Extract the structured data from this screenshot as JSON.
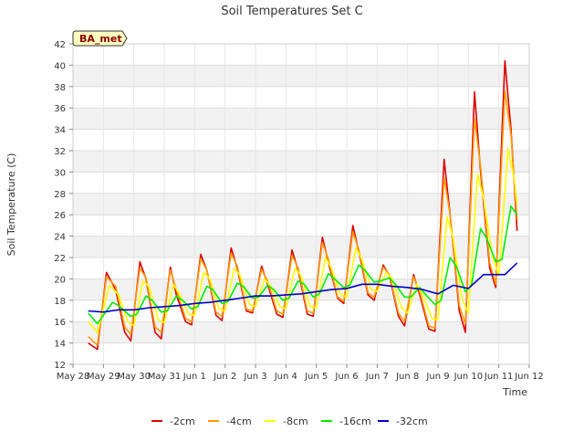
{
  "chart_data": {
    "type": "line",
    "title": "Soil Temperatures Set C",
    "xlabel": "Time",
    "ylabel": "Soil Temperature (C)",
    "badge": "BA_met",
    "ylim": [
      12,
      42
    ],
    "yticks": [
      12,
      14,
      16,
      18,
      20,
      22,
      24,
      26,
      28,
      30,
      32,
      34,
      36,
      38,
      40,
      42
    ],
    "xlim": [
      0,
      15
    ],
    "xticks": [
      {
        "pos": 0,
        "label": "May 28"
      },
      {
        "pos": 1,
        "label": "May 29"
      },
      {
        "pos": 2,
        "label": "May 30"
      },
      {
        "pos": 3,
        "label": "May 31"
      },
      {
        "pos": 4,
        "label": "Jun 1"
      },
      {
        "pos": 5,
        "label": "Jun 2"
      },
      {
        "pos": 6,
        "label": "Jun 3"
      },
      {
        "pos": 7,
        "label": "Jun 4"
      },
      {
        "pos": 8,
        "label": "Jun 5"
      },
      {
        "pos": 9,
        "label": "Jun 6"
      },
      {
        "pos": 10,
        "label": "Jun 7"
      },
      {
        "pos": 11,
        "label": "Jun 8"
      },
      {
        "pos": 12,
        "label": "Jun 9"
      },
      {
        "pos": 13,
        "label": "Jun 10"
      },
      {
        "pos": 14,
        "label": "Jun 11"
      },
      {
        "pos": 15,
        "label": "Jun 12"
      }
    ],
    "grid": true,
    "legend_position": "bottom",
    "series": [
      {
        "name": "-2cm",
        "color": "#dd0000",
        "points": [
          [
            0.5,
            14.0
          ],
          [
            0.8,
            13.4
          ],
          [
            1.1,
            20.6
          ],
          [
            1.4,
            19.0
          ],
          [
            1.7,
            15.0
          ],
          [
            1.9,
            14.2
          ],
          [
            2.2,
            21.6
          ],
          [
            2.4,
            20.0
          ],
          [
            2.7,
            15.0
          ],
          [
            2.9,
            14.4
          ],
          [
            3.2,
            21.1
          ],
          [
            3.4,
            18.5
          ],
          [
            3.7,
            16.0
          ],
          [
            3.9,
            15.7
          ],
          [
            4.2,
            22.3
          ],
          [
            4.4,
            20.8
          ],
          [
            4.7,
            16.6
          ],
          [
            4.9,
            16.1
          ],
          [
            5.2,
            22.9
          ],
          [
            5.4,
            21.0
          ],
          [
            5.7,
            17.0
          ],
          [
            5.9,
            16.8
          ],
          [
            6.2,
            21.2
          ],
          [
            6.4,
            19.5
          ],
          [
            6.7,
            16.7
          ],
          [
            6.9,
            16.4
          ],
          [
            7.2,
            22.7
          ],
          [
            7.4,
            20.8
          ],
          [
            7.7,
            16.7
          ],
          [
            7.9,
            16.5
          ],
          [
            8.2,
            23.9
          ],
          [
            8.4,
            21.5
          ],
          [
            8.7,
            18.2
          ],
          [
            8.9,
            17.7
          ],
          [
            9.2,
            25.0
          ],
          [
            9.4,
            22.5
          ],
          [
            9.7,
            18.5
          ],
          [
            9.9,
            18.0
          ],
          [
            10.2,
            21.3
          ],
          [
            10.4,
            20.3
          ],
          [
            10.7,
            16.5
          ],
          [
            10.9,
            15.6
          ],
          [
            11.2,
            20.4
          ],
          [
            11.4,
            18.5
          ],
          [
            11.7,
            15.3
          ],
          [
            11.9,
            15.1
          ],
          [
            12.2,
            31.2
          ],
          [
            12.4,
            26.0
          ],
          [
            12.7,
            17.0
          ],
          [
            12.9,
            15.0
          ],
          [
            13.2,
            37.5
          ],
          [
            13.4,
            30.0
          ],
          [
            13.7,
            21.0
          ],
          [
            13.9,
            19.2
          ],
          [
            14.2,
            40.4
          ],
          [
            14.4,
            34.0
          ],
          [
            14.6,
            24.5
          ]
        ]
      },
      {
        "name": "-4cm",
        "color": "#ff9900",
        "points": [
          [
            0.5,
            14.6
          ],
          [
            0.8,
            13.8
          ],
          [
            1.1,
            20.2
          ],
          [
            1.4,
            19.3
          ],
          [
            1.7,
            15.5
          ],
          [
            1.9,
            14.8
          ],
          [
            2.2,
            21.0
          ],
          [
            2.4,
            20.1
          ],
          [
            2.7,
            15.5
          ],
          [
            2.9,
            15.0
          ],
          [
            3.2,
            20.8
          ],
          [
            3.4,
            19.0
          ],
          [
            3.7,
            16.3
          ],
          [
            3.9,
            16.0
          ],
          [
            4.2,
            21.9
          ],
          [
            4.4,
            20.8
          ],
          [
            4.7,
            16.9
          ],
          [
            4.9,
            16.5
          ],
          [
            5.2,
            22.4
          ],
          [
            5.4,
            21.2
          ],
          [
            5.7,
            17.2
          ],
          [
            5.9,
            17.0
          ],
          [
            6.2,
            20.9
          ],
          [
            6.4,
            19.8
          ],
          [
            6.7,
            17.0
          ],
          [
            6.9,
            16.7
          ],
          [
            7.2,
            22.2
          ],
          [
            7.4,
            21.0
          ],
          [
            7.7,
            17.0
          ],
          [
            7.9,
            16.8
          ],
          [
            8.2,
            23.4
          ],
          [
            8.4,
            21.8
          ],
          [
            8.7,
            18.3
          ],
          [
            8.9,
            17.9
          ],
          [
            9.2,
            24.4
          ],
          [
            9.4,
            22.7
          ],
          [
            9.7,
            18.7
          ],
          [
            9.9,
            18.3
          ],
          [
            10.2,
            21.1
          ],
          [
            10.4,
            20.4
          ],
          [
            10.7,
            16.8
          ],
          [
            10.9,
            16.0
          ],
          [
            11.2,
            20.2
          ],
          [
            11.4,
            18.8
          ],
          [
            11.7,
            15.6
          ],
          [
            11.9,
            15.4
          ],
          [
            12.2,
            29.5
          ],
          [
            12.4,
            26.0
          ],
          [
            12.7,
            17.5
          ],
          [
            12.9,
            15.8
          ],
          [
            13.2,
            35.0
          ],
          [
            13.4,
            30.5
          ],
          [
            13.7,
            21.5
          ],
          [
            13.9,
            19.5
          ],
          [
            14.2,
            37.6
          ],
          [
            14.4,
            33.5
          ],
          [
            14.6,
            25.5
          ]
        ]
      },
      {
        "name": "-8cm",
        "color": "#ffff00",
        "points": [
          [
            0.5,
            16.0
          ],
          [
            0.8,
            15.0
          ],
          [
            1.2,
            19.4
          ],
          [
            1.5,
            18.5
          ],
          [
            1.8,
            16.0
          ],
          [
            2.0,
            15.6
          ],
          [
            2.3,
            19.8
          ],
          [
            2.5,
            19.3
          ],
          [
            2.8,
            16.2
          ],
          [
            3.0,
            15.9
          ],
          [
            3.3,
            19.5
          ],
          [
            3.5,
            18.6
          ],
          [
            3.8,
            16.7
          ],
          [
            4.0,
            16.6
          ],
          [
            4.3,
            20.6
          ],
          [
            4.5,
            20.0
          ],
          [
            4.8,
            17.2
          ],
          [
            5.0,
            17.0
          ],
          [
            5.3,
            21.0
          ],
          [
            5.5,
            20.3
          ],
          [
            5.8,
            17.6
          ],
          [
            6.0,
            17.4
          ],
          [
            6.3,
            20.0
          ],
          [
            6.5,
            19.3
          ],
          [
            6.8,
            17.4
          ],
          [
            7.0,
            17.2
          ],
          [
            7.3,
            21.0
          ],
          [
            7.5,
            20.3
          ],
          [
            7.8,
            17.4
          ],
          [
            8.0,
            17.3
          ],
          [
            8.3,
            22.0
          ],
          [
            8.5,
            21.0
          ],
          [
            8.8,
            18.5
          ],
          [
            9.0,
            18.3
          ],
          [
            9.3,
            22.9
          ],
          [
            9.5,
            21.8
          ],
          [
            9.8,
            19.0
          ],
          [
            10.0,
            18.8
          ],
          [
            10.3,
            20.6
          ],
          [
            10.5,
            20.0
          ],
          [
            10.8,
            17.3
          ],
          [
            11.0,
            16.8
          ],
          [
            11.3,
            19.5
          ],
          [
            11.5,
            18.5
          ],
          [
            11.8,
            16.3
          ],
          [
            12.0,
            16.2
          ],
          [
            12.3,
            25.8
          ],
          [
            12.5,
            23.8
          ],
          [
            12.8,
            18.0
          ],
          [
            13.0,
            16.8
          ],
          [
            13.3,
            29.8
          ],
          [
            13.5,
            27.5
          ],
          [
            13.8,
            22.0
          ],
          [
            14.0,
            20.3
          ],
          [
            14.3,
            32.2
          ],
          [
            14.5,
            29.5
          ],
          [
            14.6,
            27.0
          ]
        ]
      },
      {
        "name": "-16cm",
        "color": "#00ee00",
        "points": [
          [
            0.5,
            16.8
          ],
          [
            0.8,
            15.8
          ],
          [
            1.3,
            17.8
          ],
          [
            1.5,
            17.5
          ],
          [
            1.9,
            16.5
          ],
          [
            2.1,
            16.7
          ],
          [
            2.4,
            18.4
          ],
          [
            2.6,
            18.0
          ],
          [
            2.9,
            16.9
          ],
          [
            3.1,
            17.0
          ],
          [
            3.4,
            18.4
          ],
          [
            3.6,
            18.0
          ],
          [
            3.9,
            17.2
          ],
          [
            4.1,
            17.4
          ],
          [
            4.4,
            19.3
          ],
          [
            4.6,
            19.0
          ],
          [
            4.9,
            17.7
          ],
          [
            5.1,
            17.9
          ],
          [
            5.4,
            19.6
          ],
          [
            5.6,
            19.3
          ],
          [
            5.9,
            18.2
          ],
          [
            6.1,
            18.3
          ],
          [
            6.4,
            19.4
          ],
          [
            6.6,
            19.0
          ],
          [
            6.9,
            18.0
          ],
          [
            7.1,
            18.2
          ],
          [
            7.4,
            19.8
          ],
          [
            7.6,
            19.5
          ],
          [
            7.9,
            18.3
          ],
          [
            8.1,
            18.6
          ],
          [
            8.4,
            20.5
          ],
          [
            8.6,
            20.0
          ],
          [
            8.9,
            19.2
          ],
          [
            9.1,
            19.4
          ],
          [
            9.4,
            21.3
          ],
          [
            9.6,
            20.8
          ],
          [
            9.9,
            19.7
          ],
          [
            10.1,
            19.8
          ],
          [
            10.4,
            20.1
          ],
          [
            10.6,
            19.5
          ],
          [
            10.9,
            18.3
          ],
          [
            11.1,
            18.3
          ],
          [
            11.4,
            19.2
          ],
          [
            11.6,
            18.5
          ],
          [
            11.9,
            17.6
          ],
          [
            12.1,
            18.0
          ],
          [
            12.4,
            22.0
          ],
          [
            12.6,
            21.2
          ],
          [
            12.9,
            18.8
          ],
          [
            13.1,
            19.4
          ],
          [
            13.4,
            24.7
          ],
          [
            13.6,
            23.8
          ],
          [
            13.9,
            21.6
          ],
          [
            14.1,
            21.8
          ],
          [
            14.4,
            26.8
          ],
          [
            14.6,
            26.0
          ]
        ]
      },
      {
        "name": "-32cm",
        "color": "#0000cc",
        "points": [
          [
            0.5,
            17.0
          ],
          [
            1.0,
            16.9
          ],
          [
            1.5,
            17.1
          ],
          [
            2.0,
            17.1
          ],
          [
            2.5,
            17.3
          ],
          [
            3.0,
            17.4
          ],
          [
            3.5,
            17.5
          ],
          [
            4.0,
            17.7
          ],
          [
            4.5,
            17.8
          ],
          [
            5.0,
            18.0
          ],
          [
            5.5,
            18.2
          ],
          [
            6.0,
            18.4
          ],
          [
            6.5,
            18.4
          ],
          [
            7.0,
            18.5
          ],
          [
            7.5,
            18.6
          ],
          [
            8.0,
            18.8
          ],
          [
            8.5,
            19.0
          ],
          [
            9.0,
            19.1
          ],
          [
            9.5,
            19.5
          ],
          [
            10.0,
            19.5
          ],
          [
            10.5,
            19.3
          ],
          [
            11.0,
            19.2
          ],
          [
            11.5,
            19.0
          ],
          [
            12.0,
            18.6
          ],
          [
            12.5,
            19.4
          ],
          [
            13.0,
            19.1
          ],
          [
            13.5,
            20.4
          ],
          [
            14.0,
            20.4
          ],
          [
            14.2,
            20.4
          ],
          [
            14.6,
            21.5
          ]
        ]
      }
    ]
  }
}
